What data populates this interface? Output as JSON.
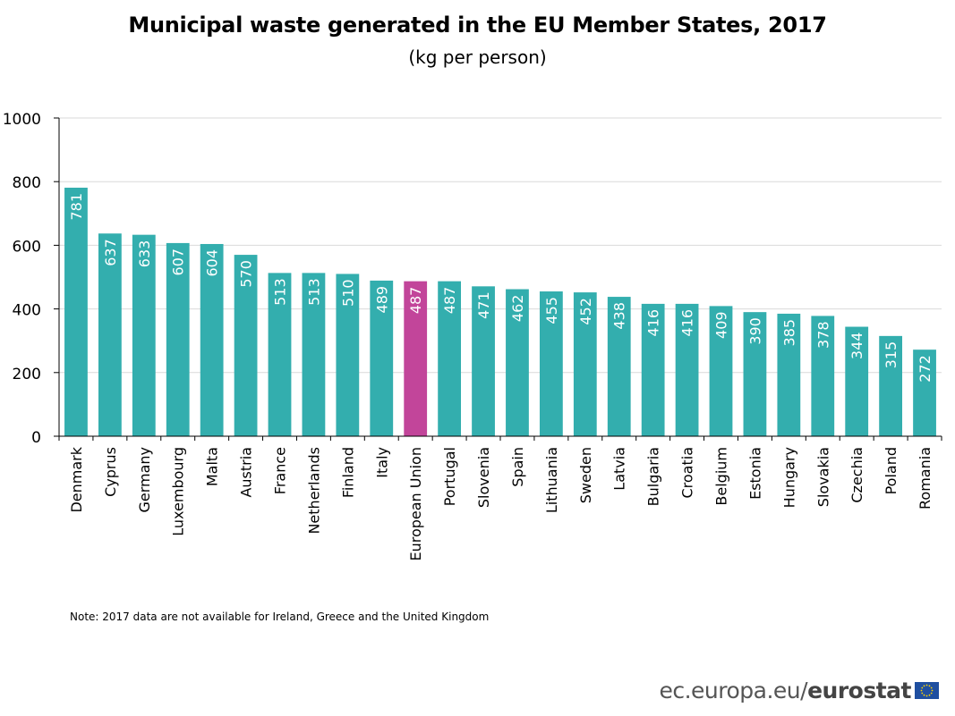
{
  "header": {
    "title": "Municipal waste generated in the EU Member States, 2017",
    "subtitle": "(kg per person)"
  },
  "note": "Note: 2017 data are not available for Ireland, Greece and the United Kingdom",
  "source": {
    "site": "ec.europa.eu/",
    "brand": "eurostat",
    "flag_icon": "eu-flag-icon"
  },
  "colors": {
    "bar": "#33aeae",
    "highlight": "#c2459a",
    "grid": "#d9d9d9",
    "axis": "#000000"
  },
  "chart_data": {
    "type": "bar",
    "title": "Municipal waste generated in the EU Member States, 2017",
    "subtitle": "(kg per person)",
    "xlabel": "",
    "ylabel": "",
    "ylim": [
      0,
      1000
    ],
    "yticks": [
      0,
      200,
      400,
      600,
      800,
      1000
    ],
    "grid": true,
    "highlight_category": "European Union",
    "categories": [
      "Denmark",
      "Cyprus",
      "Germany",
      "Luxembourg",
      "Malta",
      "Austria",
      "France",
      "Netherlands",
      "Finland",
      "Italy",
      "European Union",
      "Portugal",
      "Slovenia",
      "Spain",
      "Lithuania",
      "Sweden",
      "Latvia",
      "Bulgaria",
      "Croatia",
      "Belgium",
      "Estonia",
      "Hungary",
      "Slovakia",
      "Czechia",
      "Poland",
      "Romania"
    ],
    "values": [
      781,
      637,
      633,
      607,
      604,
      570,
      513,
      513,
      510,
      489,
      487,
      487,
      471,
      462,
      455,
      452,
      438,
      416,
      416,
      409,
      390,
      385,
      378,
      344,
      315,
      272
    ]
  }
}
